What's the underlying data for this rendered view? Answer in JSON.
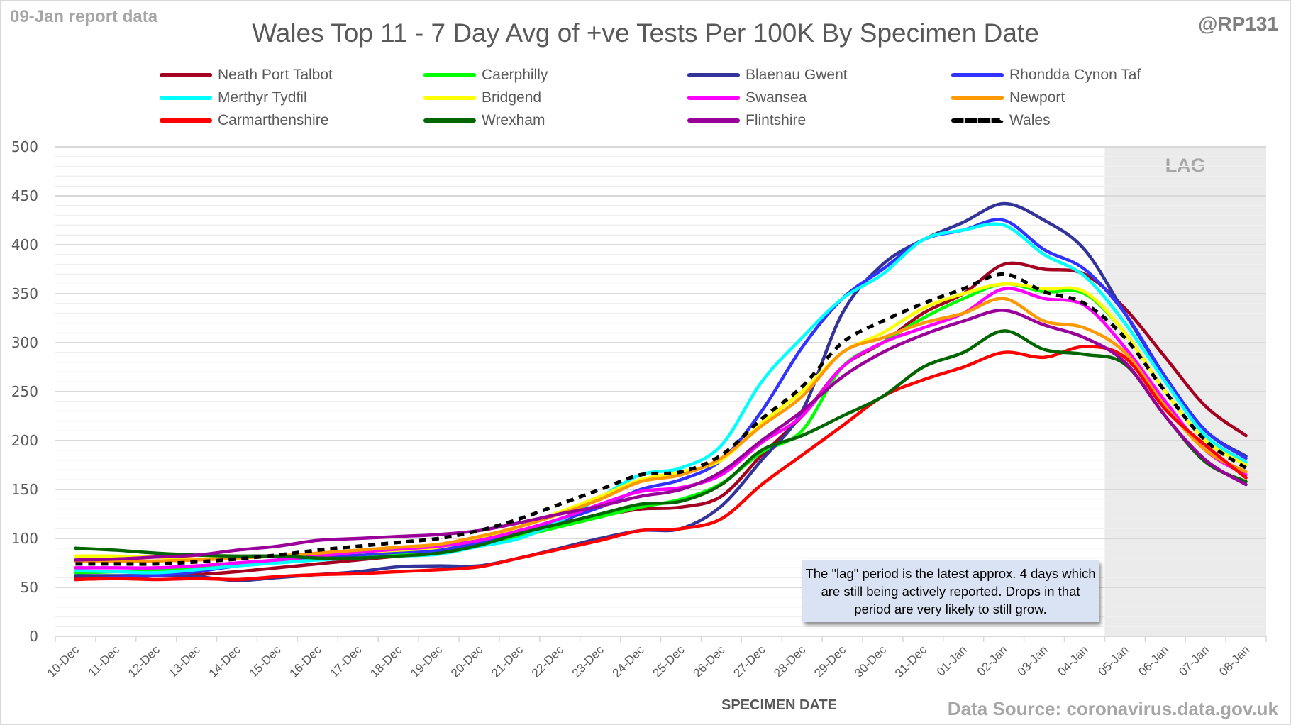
{
  "header": {
    "report_label": "09-Jan report data",
    "handle": "@RP131",
    "source": "Data Source: coronavirus.data.gov.uk"
  },
  "annotation": {
    "lag_label": "LAG",
    "note": "The \"lag\" period is the latest approx. 4 days which are still being actively reported.  Drops in that period are very likely to still grow."
  },
  "chart_data": {
    "type": "line",
    "title": "Wales Top 11 - 7 Day Avg of +ve Tests Per 100K By Specimen Date",
    "xlabel": "SPECIMEN DATE",
    "ylabel": "",
    "ylim": [
      0,
      500
    ],
    "yticks": [
      0,
      50,
      100,
      150,
      200,
      250,
      300,
      350,
      400,
      450,
      500
    ],
    "minor_grid_step": 10,
    "grid": true,
    "legend_position": "top",
    "lag_period": {
      "from": "05-Jan",
      "to": "08-Jan"
    },
    "categories": [
      "10-Dec",
      "11-Dec",
      "12-Dec",
      "13-Dec",
      "14-Dec",
      "15-Dec",
      "16-Dec",
      "17-Dec",
      "18-Dec",
      "19-Dec",
      "20-Dec",
      "21-Dec",
      "22-Dec",
      "23-Dec",
      "24-Dec",
      "25-Dec",
      "26-Dec",
      "27-Dec",
      "28-Dec",
      "29-Dec",
      "30-Dec",
      "31-Dec",
      "01-Jan",
      "02-Jan",
      "03-Jan",
      "04-Jan",
      "05-Jan",
      "06-Jan",
      "07-Jan",
      "08-Jan"
    ],
    "series": [
      {
        "name": "Neath Port Talbot",
        "color": "#A50021",
        "dashed": false,
        "values": [
          60,
          61,
          62,
          63,
          66,
          70,
          74,
          78,
          82,
          86,
          95,
          108,
          116,
          123,
          130,
          132,
          143,
          185,
          225,
          275,
          300,
          330,
          350,
          380,
          375,
          370,
          335,
          285,
          235,
          205
        ]
      },
      {
        "name": "Caerphilly",
        "color": "#00FF00",
        "dashed": false,
        "values": [
          65,
          66,
          68,
          70,
          73,
          76,
          79,
          81,
          83,
          86,
          93,
          102,
          112,
          122,
          132,
          140,
          156,
          188,
          210,
          275,
          300,
          325,
          345,
          360,
          352,
          350,
          310,
          250,
          200,
          175
        ]
      },
      {
        "name": "Blaenau Gwent",
        "color": "#333399",
        "dashed": false,
        "values": [
          62,
          62,
          62,
          61,
          57,
          60,
          63,
          66,
          71,
          72,
          72,
          80,
          90,
          100,
          108,
          110,
          133,
          180,
          230,
          330,
          380,
          405,
          423,
          442,
          425,
          395,
          330,
          265,
          210,
          184
        ]
      },
      {
        "name": "Rhondda Cynon Taf",
        "color": "#3333FF",
        "dashed": false,
        "values": [
          58,
          60,
          62,
          66,
          72,
          76,
          80,
          83,
          86,
          88,
          96,
          105,
          118,
          132,
          150,
          160,
          180,
          230,
          295,
          345,
          375,
          405,
          415,
          425,
          395,
          375,
          330,
          265,
          210,
          182
        ]
      },
      {
        "name": "Merthyr Tydfil",
        "color": "#00FFFF",
        "dashed": false,
        "values": [
          67,
          66,
          65,
          68,
          72,
          75,
          78,
          80,
          82,
          84,
          92,
          100,
          118,
          142,
          165,
          172,
          195,
          260,
          305,
          345,
          370,
          405,
          415,
          420,
          390,
          368,
          320,
          260,
          205,
          178
        ]
      },
      {
        "name": "Bridgend",
        "color": "#FFFF00",
        "dashed": false,
        "values": [
          82,
          82,
          81,
          79,
          80,
          82,
          84,
          86,
          88,
          91,
          100,
          112,
          127,
          143,
          160,
          168,
          180,
          218,
          250,
          290,
          310,
          335,
          350,
          360,
          355,
          352,
          310,
          250,
          200,
          175
        ]
      },
      {
        "name": "Swansea",
        "color": "#FF00FF",
        "dashed": false,
        "values": [
          70,
          70,
          70,
          72,
          75,
          78,
          82,
          86,
          89,
          92,
          98,
          108,
          120,
          135,
          148,
          152,
          165,
          198,
          225,
          275,
          300,
          315,
          330,
          355,
          345,
          338,
          295,
          240,
          190,
          165
        ]
      },
      {
        "name": "Newport",
        "color": "#FF9900",
        "dashed": false,
        "values": [
          77,
          77,
          77,
          78,
          80,
          82,
          85,
          88,
          91,
          94,
          102,
          112,
          125,
          140,
          158,
          165,
          182,
          215,
          245,
          290,
          305,
          320,
          330,
          345,
          322,
          315,
          290,
          235,
          190,
          168
        ]
      },
      {
        "name": "Carmarthenshire",
        "color": "#FF0000",
        "dashed": false,
        "values": [
          58,
          59,
          58,
          59,
          58,
          61,
          63,
          64,
          66,
          68,
          71,
          80,
          89,
          98,
          108,
          110,
          120,
          155,
          185,
          215,
          245,
          262,
          275,
          290,
          285,
          296,
          285,
          232,
          195,
          162
        ]
      },
      {
        "name": "Wrexham",
        "color": "#006600",
        "dashed": false,
        "values": [
          90,
          88,
          85,
          83,
          82,
          82,
          80,
          80,
          82,
          85,
          93,
          105,
          115,
          125,
          135,
          138,
          155,
          190,
          205,
          225,
          245,
          275,
          290,
          312,
          293,
          288,
          278,
          225,
          178,
          158
        ]
      },
      {
        "name": "Flintshire",
        "color": "#990099",
        "dashed": false,
        "values": [
          78,
          79,
          81,
          83,
          88,
          92,
          98,
          100,
          102,
          104,
          108,
          116,
          125,
          133,
          143,
          150,
          168,
          200,
          230,
          265,
          290,
          308,
          322,
          333,
          318,
          305,
          280,
          225,
          180,
          155
        ]
      },
      {
        "name": "Wales",
        "color": "#000000",
        "dashed": true,
        "values": [
          74,
          74,
          74,
          76,
          79,
          83,
          88,
          92,
          96,
          100,
          108,
          120,
          135,
          150,
          165,
          168,
          185,
          222,
          255,
          300,
          322,
          340,
          355,
          370,
          352,
          340,
          305,
          250,
          200,
          172
        ]
      }
    ]
  }
}
